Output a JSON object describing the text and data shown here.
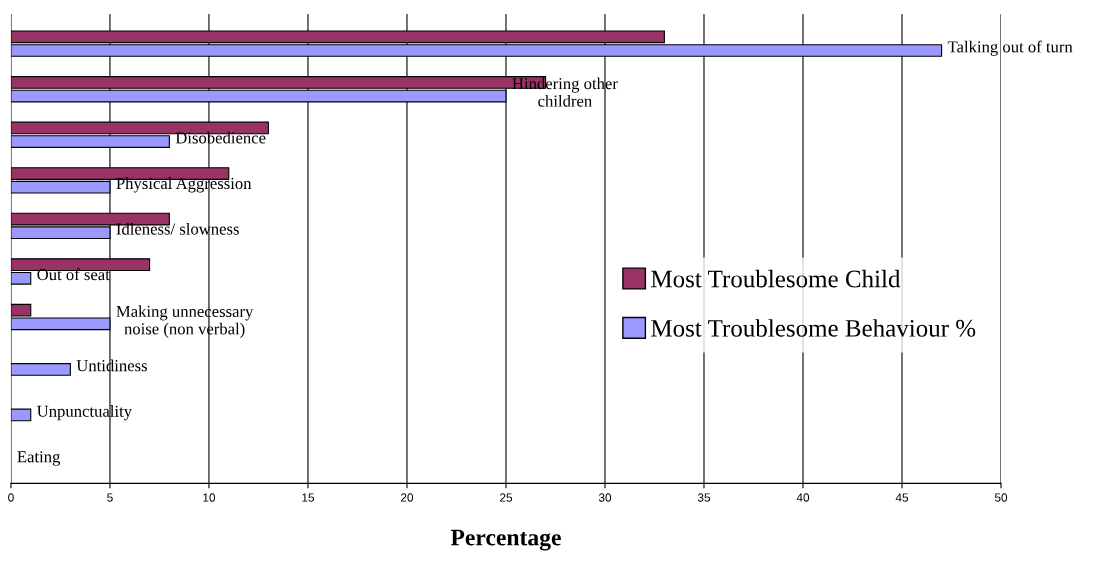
{
  "chart_data": {
    "type": "bar",
    "orientation": "horizontal",
    "xlabel": "Percentage",
    "categories": [
      "Talking out of turn",
      "Hindering other\nchildren",
      "Disobedience",
      "Physical Aggression",
      "Idleness/ slowness",
      "Out of seat",
      "Making unnecessary\nnoise (non verbal)",
      "Untidiness",
      "Unpunctuality",
      "Eating"
    ],
    "series": [
      {
        "name": "Most Troublesome Child",
        "color": "#993366",
        "values": [
          33,
          27,
          13,
          11,
          8,
          7,
          1,
          null,
          null,
          null
        ]
      },
      {
        "name": "Most Troublesome Behaviour %",
        "color": "#9999ff",
        "values": [
          47,
          25,
          8,
          5,
          5,
          1,
          5,
          3,
          1,
          null
        ]
      }
    ],
    "xlim": [
      0,
      50
    ],
    "xticks": [
      0,
      5,
      10,
      15,
      20,
      25,
      30,
      35,
      40,
      45,
      50
    ],
    "grid": "x",
    "legend": "right"
  }
}
